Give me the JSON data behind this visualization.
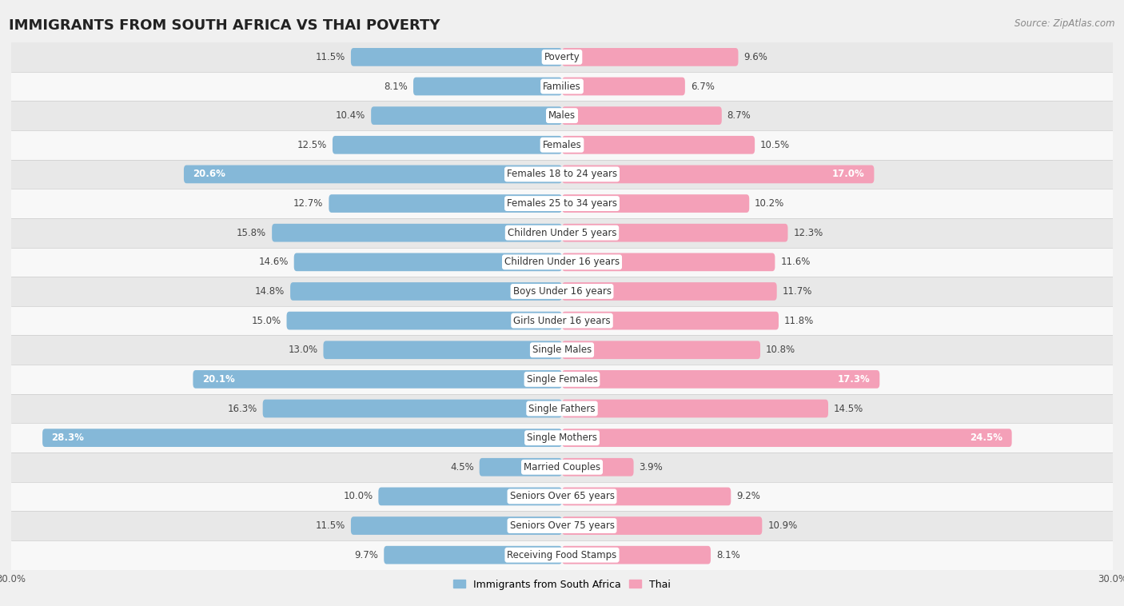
{
  "title": "IMMIGRANTS FROM SOUTH AFRICA VS THAI POVERTY",
  "source": "Source: ZipAtlas.com",
  "categories": [
    "Poverty",
    "Families",
    "Males",
    "Females",
    "Females 18 to 24 years",
    "Females 25 to 34 years",
    "Children Under 5 years",
    "Children Under 16 years",
    "Boys Under 16 years",
    "Girls Under 16 years",
    "Single Males",
    "Single Females",
    "Single Fathers",
    "Single Mothers",
    "Married Couples",
    "Seniors Over 65 years",
    "Seniors Over 75 years",
    "Receiving Food Stamps"
  ],
  "left_values": [
    11.5,
    8.1,
    10.4,
    12.5,
    20.6,
    12.7,
    15.8,
    14.6,
    14.8,
    15.0,
    13.0,
    20.1,
    16.3,
    28.3,
    4.5,
    10.0,
    11.5,
    9.7
  ],
  "right_values": [
    9.6,
    6.7,
    8.7,
    10.5,
    17.0,
    10.2,
    12.3,
    11.6,
    11.7,
    11.8,
    10.8,
    17.3,
    14.5,
    24.5,
    3.9,
    9.2,
    10.9,
    8.1
  ],
  "left_color": "#85b8d8",
  "right_color": "#f4a0b8",
  "bar_height": 0.62,
  "xlim": 30.0,
  "legend_left": "Immigrants from South Africa",
  "legend_right": "Thai",
  "background_color": "#f0f0f0",
  "row_colors": [
    "#e8e8e8",
    "#f8f8f8"
  ],
  "title_fontsize": 13,
  "label_fontsize": 8.5,
  "value_fontsize": 8.5,
  "inside_threshold": 17.0
}
